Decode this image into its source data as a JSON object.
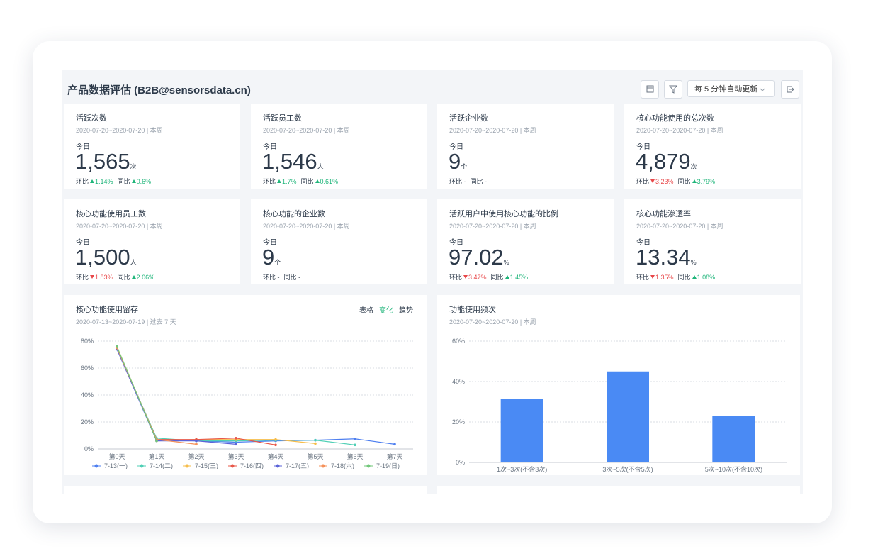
{
  "header": {
    "title": "产品数据评估 (B2B@sensorsdata.cn)",
    "refresh": "每 5 分钟自动更新"
  },
  "cards": [
    {
      "title": "活跃次数",
      "date": "2020-07-20~2020-07-20 | 本周",
      "period": "今日",
      "value": "1,565",
      "unit": "次",
      "compare": [
        {
          "label": "环比",
          "dir": "up",
          "value": "1.14%"
        },
        {
          "label": "同比",
          "dir": "up",
          "value": "0.6%"
        }
      ]
    },
    {
      "title": "活跃员工数",
      "date": "2020-07-20~2020-07-20 | 本周",
      "period": "今日",
      "value": "1,546",
      "unit": "人",
      "compare": [
        {
          "label": "环比",
          "dir": "up",
          "value": "1.7%"
        },
        {
          "label": "同比",
          "dir": "up",
          "value": "0.61%"
        }
      ]
    },
    {
      "title": "活跃企业数",
      "date": "2020-07-20~2020-07-20 | 本周",
      "period": "今日",
      "value": "9",
      "unit": "个",
      "compare": [
        {
          "label": "环比",
          "value": "-"
        },
        {
          "label": "同比",
          "value": "-"
        }
      ]
    },
    {
      "title": "核心功能使用的总次数",
      "date": "2020-07-20~2020-07-20 | 本周",
      "period": "今日",
      "value": "4,879",
      "unit": "次",
      "compare": [
        {
          "label": "环比",
          "dir": "down",
          "value": "3.23%"
        },
        {
          "label": "同比",
          "dir": "up",
          "value": "3.79%"
        }
      ]
    },
    {
      "title": "核心功能使用员工数",
      "date": "2020-07-20~2020-07-20 | 本周",
      "period": "今日",
      "value": "1,500",
      "unit": "人",
      "compare": [
        {
          "label": "环比",
          "dir": "down",
          "value": "1.83%"
        },
        {
          "label": "同比",
          "dir": "up",
          "value": "2.06%"
        }
      ]
    },
    {
      "title": "核心功能的企业数",
      "date": "2020-07-20~2020-07-20 | 本周",
      "period": "今日",
      "value": "9",
      "unit": "个",
      "compare": [
        {
          "label": "环比",
          "value": "-"
        },
        {
          "label": "同比",
          "value": "-"
        }
      ]
    },
    {
      "title": "活跃用户中使用核心功能的比例",
      "date": "2020-07-20~2020-07-20 | 本周",
      "period": "今日",
      "value": "97.02",
      "unit": "%",
      "compare": [
        {
          "label": "环比",
          "dir": "down",
          "value": "3.47%"
        },
        {
          "label": "同比",
          "dir": "up",
          "value": "1.45%"
        }
      ]
    },
    {
      "title": "核心功能渗透率",
      "date": "2020-07-20~2020-07-20 | 本周",
      "period": "今日",
      "value": "13.34",
      "unit": "%",
      "compare": [
        {
          "label": "环比",
          "dir": "down",
          "value": "1.35%"
        },
        {
          "label": "同比",
          "dir": "up",
          "value": "1.08%"
        }
      ]
    }
  ],
  "retention_chart": {
    "type": "line",
    "title": "核心功能使用留存",
    "date": "2020-07-13~2020-07-19 | 过去 7 天",
    "tabs": [
      "表格",
      "变化",
      "趋势"
    ],
    "active_tab": 1,
    "categories": [
      "第0天",
      "第1天",
      "第2天",
      "第3天",
      "第4天",
      "第5天",
      "第6天",
      "第7天"
    ],
    "ylim": [
      0,
      80
    ],
    "yticks": [
      {
        "value": 0,
        "label": "0%"
      },
      {
        "value": 20,
        "label": "20%"
      },
      {
        "value": 40,
        "label": "40%"
      },
      {
        "value": 60,
        "label": "60%"
      },
      {
        "value": 80,
        "label": "80%"
      }
    ],
    "grid": true,
    "series": [
      {
        "name": "7-13(一)",
        "color": "#4e7ff0",
        "values": [
          75,
          7,
          6,
          5,
          6,
          6.5,
          7.5,
          3.5
        ]
      },
      {
        "name": "7-14(二)",
        "color": "#4fcfb5",
        "values": [
          74,
          8,
          6,
          6,
          6.5,
          6.5,
          3,
          null
        ]
      },
      {
        "name": "7-15(三)",
        "color": "#f6bd4a",
        "values": [
          76,
          6,
          7,
          7,
          7,
          4,
          null,
          null
        ]
      },
      {
        "name": "7-16(四)",
        "color": "#e8584a",
        "values": [
          75,
          7,
          7,
          8,
          3,
          null,
          null,
          null
        ]
      },
      {
        "name": "7-17(五)",
        "color": "#5b63d8",
        "values": [
          74,
          6,
          6,
          3.5,
          null,
          null,
          null,
          null
        ]
      },
      {
        "name": "7-18(六)",
        "color": "#f5915a",
        "values": [
          75,
          7,
          3.5,
          null,
          null,
          null,
          null,
          null
        ]
      },
      {
        "name": "7-19(日)",
        "color": "#72c77a",
        "values": [
          76,
          6,
          null,
          null,
          null,
          null,
          null,
          null
        ]
      }
    ]
  },
  "frequency_chart": {
    "type": "bar",
    "title": "功能使用频次",
    "date": "2020-07-20~2020-07-20 | 本周",
    "categories": [
      "1次~3次(不含3次)",
      "3次~5次(不含5次)",
      "5次~10次(不含10次)"
    ],
    "values": [
      31.5,
      45,
      23
    ],
    "color": "#4a8af4",
    "ylim": [
      0,
      60
    ],
    "yticks": [
      {
        "value": 0,
        "label": "0%"
      },
      {
        "value": 20,
        "label": "20%"
      },
      {
        "value": 40,
        "label": "40%"
      },
      {
        "value": 60,
        "label": "60%"
      }
    ],
    "grid": true
  }
}
